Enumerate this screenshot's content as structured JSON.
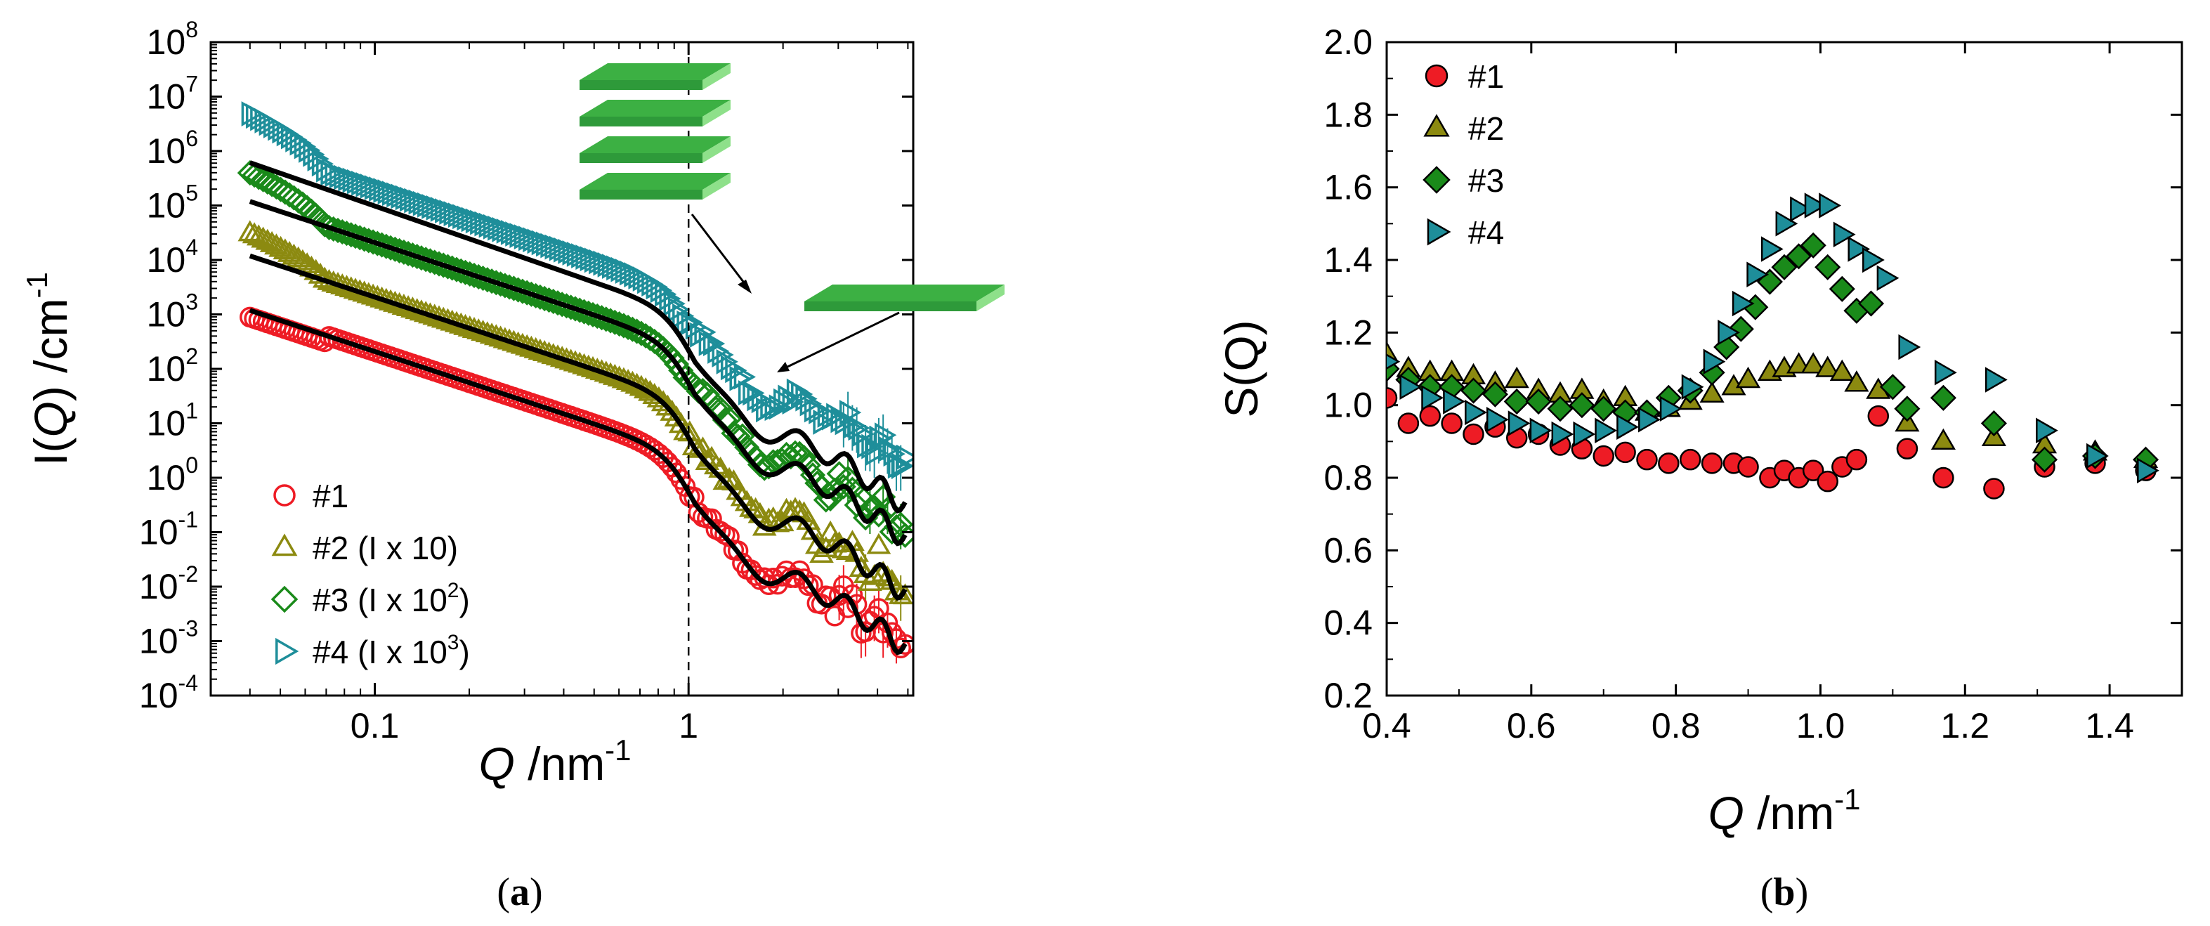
{
  "colors": {
    "s1": "#ee1c25",
    "s2": "#8c8a10",
    "s3": "#1a8a1a",
    "s4": "#1e8e9a",
    "fit": "#000000",
    "plate_top": "#3cb043",
    "plate_side": "#8ee08a"
  },
  "chart_data": [
    {
      "panel": "a",
      "caption": "(a)",
      "type": "scatter",
      "xscale": "log",
      "yscale": "log",
      "xlabel": {
        "italic": "Q",
        "rest": " /nm",
        "sup": "-1"
      },
      "ylabel": {
        "pre": "I(",
        "italic": "Q",
        "post": ") /cm",
        "sup": "-1"
      },
      "xlim": [
        0.03,
        5.2
      ],
      "ylim": [
        0.0001,
        100000000
      ],
      "xticks": [
        {
          "value": 0.1,
          "label": "0.1"
        },
        {
          "value": 1,
          "label": "1"
        }
      ],
      "yticks": [
        {
          "exp": -4,
          "label": "10",
          "sup": "-4"
        },
        {
          "exp": -3,
          "label": "10",
          "sup": "-3"
        },
        {
          "exp": -2,
          "label": "10",
          "sup": "-2"
        },
        {
          "exp": -1,
          "label": "10",
          "sup": "-1"
        },
        {
          "exp": 0,
          "label": "10",
          "sup": "0"
        },
        {
          "exp": 1,
          "label": "10",
          "sup": "1"
        },
        {
          "exp": 2,
          "label": "10",
          "sup": "2"
        },
        {
          "exp": 3,
          "label": "10",
          "sup": "3"
        },
        {
          "exp": 4,
          "label": "10",
          "sup": "4"
        },
        {
          "exp": 5,
          "label": "10",
          "sup": "5"
        },
        {
          "exp": 6,
          "label": "10",
          "sup": "6"
        },
        {
          "exp": 7,
          "label": "10",
          "sup": "7"
        },
        {
          "exp": 8,
          "label": "10",
          "sup": "8"
        }
      ],
      "vline_x": 1,
      "legend_position": "bottom-left",
      "series": [
        {
          "name": "#1",
          "legend": "#1",
          "sup": "",
          "legend_tail": "",
          "marker": "circle",
          "color_key": "s1",
          "scale": 1,
          "q_range": [
            0.04,
            4.9
          ]
        },
        {
          "name": "#2",
          "legend": "#2 (I x 10)",
          "sup": "",
          "legend_tail": "",
          "marker": "triangle",
          "color_key": "s2",
          "scale": 10,
          "q_range": [
            0.04,
            4.9
          ]
        },
        {
          "name": "#3",
          "legend": "#3 (I x 10",
          "sup": "2",
          "legend_tail": ")",
          "marker": "diamond",
          "color_key": "s3",
          "scale": 100,
          "q_range": [
            0.04,
            4.9
          ]
        },
        {
          "name": "#4",
          "legend": "#4 (I x 10",
          "sup": "3",
          "legend_tail": ")",
          "marker": "right-triangle",
          "color_key": "s4",
          "scale": 1000,
          "q_range": [
            0.04,
            4.9
          ]
        }
      ],
      "fit_lines": "black model curves through each series",
      "annotations": [
        "stacked plates (multilayer)",
        "single plate (monolayer)"
      ]
    },
    {
      "panel": "b",
      "caption": "(b)",
      "type": "scatter",
      "xlabel": {
        "italic": "Q",
        "rest": " /nm",
        "sup": "-1"
      },
      "ylabel": "S(Q)",
      "xlim": [
        0.4,
        1.5
      ],
      "ylim": [
        0.2,
        2.0
      ],
      "xticks": [
        0.4,
        0.6,
        0.8,
        1.0,
        1.2,
        1.4
      ],
      "yticks": [
        0.2,
        0.4,
        0.6,
        0.8,
        1.0,
        1.2,
        1.4,
        1.6,
        1.8,
        2.0
      ],
      "legend_position": "top-left",
      "series": [
        {
          "name": "#1",
          "marker": "circle",
          "color_key": "s1",
          "x": [
            0.4,
            0.43,
            0.46,
            0.49,
            0.52,
            0.55,
            0.58,
            0.61,
            0.64,
            0.67,
            0.7,
            0.73,
            0.76,
            0.79,
            0.82,
            0.85,
            0.88,
            0.9,
            0.93,
            0.95,
            0.97,
            0.99,
            1.01,
            1.03,
            1.05,
            1.08,
            1.12,
            1.17,
            1.24,
            1.31,
            1.38,
            1.45
          ],
          "y": [
            1.02,
            0.95,
            0.97,
            0.95,
            0.92,
            0.94,
            0.91,
            0.92,
            0.89,
            0.88,
            0.86,
            0.87,
            0.85,
            0.84,
            0.85,
            0.84,
            0.84,
            0.83,
            0.8,
            0.82,
            0.8,
            0.82,
            0.79,
            0.83,
            0.85,
            0.97,
            0.88,
            0.8,
            0.77,
            0.83,
            0.84,
            0.82
          ]
        },
        {
          "name": "#2",
          "marker": "triangle",
          "color_key": "s2",
          "x": [
            0.4,
            0.43,
            0.46,
            0.49,
            0.52,
            0.55,
            0.58,
            0.61,
            0.64,
            0.67,
            0.7,
            0.73,
            0.76,
            0.79,
            0.82,
            0.85,
            0.88,
            0.9,
            0.93,
            0.95,
            0.97,
            0.99,
            1.01,
            1.03,
            1.05,
            1.08,
            1.12,
            1.17,
            1.24,
            1.31,
            1.38,
            1.45
          ],
          "y": [
            1.14,
            1.1,
            1.09,
            1.09,
            1.08,
            1.06,
            1.07,
            1.04,
            1.03,
            1.04,
            1.01,
            1.02,
            0.98,
            0.99,
            1.01,
            1.03,
            1.05,
            1.07,
            1.09,
            1.1,
            1.11,
            1.11,
            1.1,
            1.09,
            1.06,
            1.04,
            0.95,
            0.9,
            0.91,
            0.89,
            0.87,
            0.85
          ]
        },
        {
          "name": "#3",
          "marker": "diamond",
          "color_key": "s3",
          "x": [
            0.4,
            0.43,
            0.46,
            0.49,
            0.52,
            0.55,
            0.58,
            0.61,
            0.64,
            0.67,
            0.7,
            0.73,
            0.76,
            0.79,
            0.82,
            0.85,
            0.87,
            0.89,
            0.91,
            0.93,
            0.95,
            0.97,
            0.99,
            1.01,
            1.03,
            1.05,
            1.07,
            1.1,
            1.12,
            1.17,
            1.24,
            1.31,
            1.38,
            1.45
          ],
          "y": [
            1.1,
            1.07,
            1.05,
            1.05,
            1.04,
            1.03,
            1.01,
            1.01,
            0.99,
            1.0,
            0.99,
            0.98,
            0.98,
            1.02,
            1.04,
            1.09,
            1.16,
            1.21,
            1.27,
            1.34,
            1.38,
            1.41,
            1.44,
            1.38,
            1.32,
            1.26,
            1.28,
            1.05,
            0.99,
            1.02,
            0.95,
            0.85,
            0.86,
            0.85
          ]
        },
        {
          "name": "#4",
          "marker": "right-triangle",
          "color_key": "s4",
          "x": [
            0.4,
            0.43,
            0.46,
            0.49,
            0.52,
            0.55,
            0.58,
            0.61,
            0.64,
            0.67,
            0.7,
            0.73,
            0.76,
            0.79,
            0.82,
            0.85,
            0.87,
            0.89,
            0.91,
            0.93,
            0.95,
            0.97,
            0.99,
            1.01,
            1.03,
            1.05,
            1.07,
            1.09,
            1.12,
            1.17,
            1.24,
            1.31,
            1.38,
            1.45
          ],
          "y": [
            1.12,
            1.05,
            1.02,
            1.01,
            0.98,
            0.96,
            0.95,
            0.93,
            0.92,
            0.92,
            0.93,
            0.94,
            0.96,
            0.99,
            1.05,
            1.12,
            1.2,
            1.28,
            1.36,
            1.43,
            1.5,
            1.54,
            1.55,
            1.55,
            1.47,
            1.43,
            1.4,
            1.35,
            1.16,
            1.09,
            1.07,
            0.93,
            0.86,
            0.82
          ]
        }
      ]
    }
  ]
}
